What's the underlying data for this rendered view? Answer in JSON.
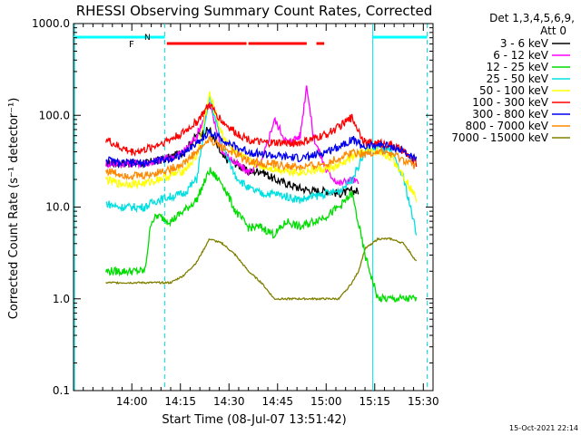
{
  "chart_data": {
    "type": "line",
    "title": "RHESSI Observing Summary Count Rates, Corrected",
    "ylabel": "Corrected Count Rate (s⁻¹ detector⁻¹)",
    "xlabel": "Start Time (08-Jul-07 13:51:42)",
    "footer": "15-Oct-2021 22:14",
    "legend_header": [
      "Det 1,3,4,5,6,9,",
      "Att 0"
    ],
    "legend_placement": "right",
    "yscale": "log",
    "ylim": [
      0.1,
      1000
    ],
    "xlim_minutes": [
      13.7,
      15.55
    ],
    "y_ticks": [
      {
        "value": 1000,
        "label": "1000.0"
      },
      {
        "value": 100,
        "label": "100.0"
      },
      {
        "value": 10,
        "label": "10.0"
      },
      {
        "value": 1,
        "label": "1.0"
      },
      {
        "value": 0.1,
        "label": "0.1"
      }
    ],
    "x_ticks": [
      {
        "value": 14.0,
        "label": "14:00"
      },
      {
        "value": 14.25,
        "label": "14:15"
      },
      {
        "value": 14.5,
        "label": "14:30"
      },
      {
        "value": 14.75,
        "label": "14:45"
      },
      {
        "value": 15.0,
        "label": "15:00"
      },
      {
        "value": 15.25,
        "label": "15:15"
      },
      {
        "value": 15.5,
        "label": "15:30"
      }
    ],
    "series": [
      {
        "name": "3 - 6 keV",
        "color": "#000000",
        "x": [
          "13:52",
          "13:56",
          "14:00",
          "14:04",
          "14:08",
          "14:12",
          "14:16",
          "14:20",
          "14:24",
          "14:28",
          "14:32",
          "14:36",
          "14:40",
          "14:44",
          "14:48",
          "14:52",
          "14:56",
          "15:00",
          "15:04",
          "15:08",
          "15:10"
        ],
        "y": [
          30,
          30,
          30,
          30,
          32,
          35,
          40,
          60,
          70,
          35,
          30,
          24,
          25,
          20,
          18,
          16,
          15,
          15,
          14,
          15,
          15
        ]
      },
      {
        "name": "6 - 12 keV",
        "color": "#ff00ff",
        "x": [
          "13:52",
          "13:56",
          "14:00",
          "14:04",
          "14:08",
          "14:12",
          "14:16",
          "14:20",
          "14:24",
          "14:28",
          "14:32",
          "14:36",
          "14:40",
          "14:44",
          "14:48",
          "14:52",
          "14:54",
          "14:56",
          "15:00",
          "15:04",
          "15:08",
          "15:10"
        ],
        "y": [
          30,
          30,
          30,
          30,
          32,
          35,
          40,
          60,
          130,
          40,
          30,
          24,
          30,
          90,
          50,
          60,
          220,
          60,
          25,
          18,
          20,
          18
        ]
      },
      {
        "name": "12 - 25 keV",
        "color": "#00dd00",
        "x": [
          "13:52",
          "13:56",
          "14:00",
          "14:04",
          "14:06",
          "14:08",
          "14:12",
          "14:16",
          "14:20",
          "14:24",
          "14:28",
          "14:32",
          "14:36",
          "14:40",
          "14:44",
          "14:48",
          "14:52",
          "14:56",
          "15:00",
          "15:04",
          "15:08",
          "15:12",
          "15:16",
          "15:20",
          "15:24",
          "15:28"
        ],
        "y": [
          2,
          2,
          2,
          2,
          7,
          8,
          7,
          9,
          12,
          25,
          18,
          9,
          6,
          6,
          5,
          7,
          6,
          7,
          8,
          10,
          14,
          3,
          1,
          1,
          1,
          1
        ]
      },
      {
        "name": "25 - 50 keV",
        "color": "#00e0e0",
        "x": [
          "13:52",
          "13:56",
          "14:00",
          "14:04",
          "14:08",
          "14:12",
          "14:16",
          "14:20",
          "14:24",
          "14:28",
          "14:32",
          "14:36",
          "14:40",
          "14:44",
          "14:48",
          "14:52",
          "14:56",
          "15:00",
          "15:04",
          "15:08",
          "15:12",
          "15:16",
          "15:20",
          "15:24",
          "15:28"
        ],
        "y": [
          11,
          10,
          10,
          10,
          12,
          13,
          14,
          20,
          160,
          45,
          22,
          16,
          14,
          14,
          13,
          12,
          13,
          14,
          15,
          20,
          40,
          45,
          40,
          20,
          5
        ]
      },
      {
        "name": "50 - 100 keV",
        "color": "#ffff00",
        "x": [
          "13:52",
          "13:56",
          "14:00",
          "14:04",
          "14:08",
          "14:12",
          "14:16",
          "14:20",
          "14:24",
          "14:28",
          "14:32",
          "14:36",
          "14:40",
          "14:44",
          "14:48",
          "14:52",
          "14:56",
          "15:00",
          "15:04",
          "15:08",
          "15:12",
          "15:16",
          "15:20",
          "15:24",
          "15:28"
        ],
        "y": [
          20,
          18,
          18,
          18,
          20,
          22,
          25,
          35,
          170,
          60,
          40,
          32,
          28,
          26,
          25,
          24,
          25,
          26,
          28,
          35,
          40,
          40,
          35,
          22,
          12
        ]
      },
      {
        "name": "100 - 300 keV",
        "color": "#ff0000",
        "x": [
          "13:52",
          "13:56",
          "14:00",
          "14:04",
          "14:08",
          "14:12",
          "14:16",
          "14:20",
          "14:24",
          "14:28",
          "14:32",
          "14:36",
          "14:40",
          "14:44",
          "14:48",
          "14:52",
          "14:56",
          "15:00",
          "15:04",
          "15:08",
          "15:12",
          "15:16",
          "15:20",
          "15:24",
          "15:28"
        ],
        "y": [
          55,
          45,
          40,
          42,
          48,
          55,
          65,
          85,
          130,
          85,
          65,
          55,
          50,
          50,
          50,
          50,
          55,
          62,
          75,
          95,
          50,
          50,
          48,
          40,
          30
        ]
      },
      {
        "name": "300 - 800 keV",
        "color": "#0000ee",
        "x": [
          "13:52",
          "13:56",
          "14:00",
          "14:04",
          "14:08",
          "14:12",
          "14:16",
          "14:20",
          "14:24",
          "14:28",
          "14:32",
          "14:36",
          "14:40",
          "14:44",
          "14:48",
          "14:52",
          "14:56",
          "15:00",
          "15:04",
          "15:08",
          "15:12",
          "15:16",
          "15:20",
          "15:24",
          "15:28"
        ],
        "y": [
          33,
          30,
          30,
          30,
          32,
          34,
          38,
          50,
          65,
          55,
          45,
          40,
          38,
          36,
          35,
          34,
          36,
          40,
          46,
          55,
          45,
          48,
          46,
          40,
          32
        ]
      },
      {
        "name": "800 - 7000 keV",
        "color": "#ff8800",
        "x": [
          "13:52",
          "13:56",
          "14:00",
          "14:04",
          "14:08",
          "14:12",
          "14:16",
          "14:20",
          "14:24",
          "14:28",
          "14:32",
          "14:36",
          "14:40",
          "14:44",
          "14:48",
          "14:52",
          "14:56",
          "15:00",
          "15:04",
          "15:08",
          "15:12",
          "15:16",
          "15:20",
          "15:24",
          "15:28"
        ],
        "y": [
          25,
          23,
          22,
          22,
          24,
          26,
          30,
          40,
          55,
          45,
          38,
          32,
          30,
          29,
          28,
          27,
          28,
          30,
          34,
          40,
          38,
          40,
          38,
          32,
          28
        ]
      },
      {
        "name": "7000 - 15000 keV",
        "color": "#808000",
        "x": [
          "13:52",
          "13:56",
          "14:00",
          "14:04",
          "14:08",
          "14:12",
          "14:16",
          "14:20",
          "14:24",
          "14:28",
          "14:32",
          "14:36",
          "14:40",
          "14:44",
          "14:48",
          "14:52",
          "14:56",
          "15:00",
          "15:04",
          "15:08",
          "15:10",
          "15:12",
          "15:16",
          "15:20",
          "15:24",
          "15:28"
        ],
        "y": [
          1.5,
          1.5,
          1.5,
          1.5,
          1.5,
          1.5,
          1.8,
          2.5,
          4.5,
          4,
          3,
          2,
          1.5,
          1,
          1,
          1,
          1,
          1,
          1,
          1.5,
          2,
          3.5,
          4.5,
          4.5,
          4,
          2.5
        ]
      }
    ],
    "state_bars": [
      {
        "label": "",
        "color": "#00ffff",
        "segments": [
          [
            13.7,
            14.17
          ],
          [
            15.24,
            15.52
          ]
        ]
      },
      {
        "label": "F",
        "color": "#ff0000",
        "segments": [
          [
            14.18,
            14.59
          ],
          [
            14.6,
            14.9
          ],
          [
            14.95,
            14.99
          ]
        ]
      },
      {
        "label": "N",
        "color": "#00ffff",
        "segments": []
      }
    ]
  }
}
